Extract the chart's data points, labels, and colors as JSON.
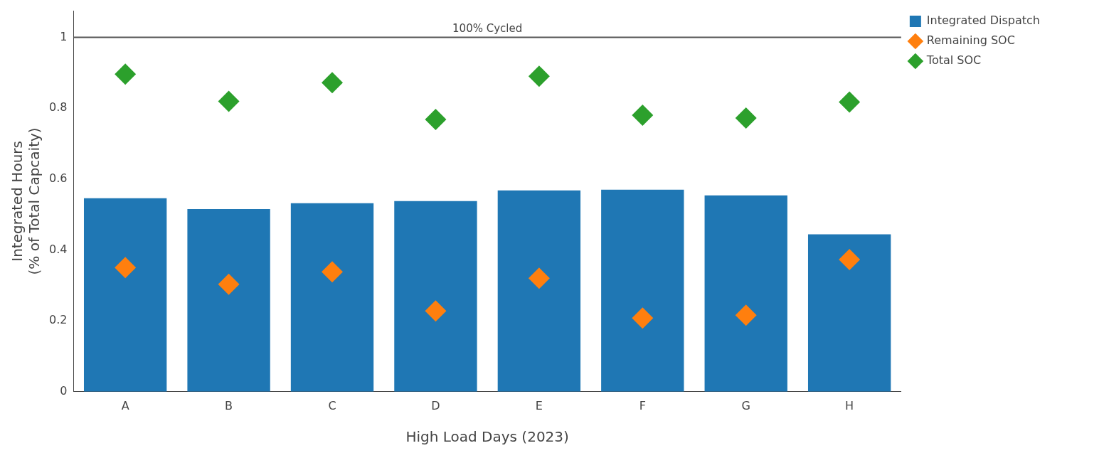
{
  "chart_data": {
    "type": "bar",
    "xlabel": "High Load Days (2023)",
    "ylabel": "Integrated Hours\n(% of Total Capcaity)",
    "categories": [
      "A",
      "B",
      "C",
      "D",
      "E",
      "F",
      "G",
      "H"
    ],
    "series": [
      {
        "name": "Integrated Dispatch",
        "color": "#1f77b4",
        "values": [
          0.546,
          0.515,
          0.532,
          0.538,
          0.568,
          0.57,
          0.554,
          0.444
        ]
      },
      {
        "name": "Remaining SOC",
        "type": "scatter",
        "color": "#ff7f0e",
        "x": [
          "A",
          "B",
          "C",
          "D",
          "E",
          "F",
          "G",
          "H"
        ],
        "values": [
          0.35,
          0.303,
          0.338,
          0.228,
          0.32,
          0.208,
          0.216,
          0.373
        ]
      },
      {
        "name": "Total SOC",
        "type": "scatter",
        "color": "#2ca02c",
        "x": [
          "A",
          "B",
          "C",
          "D",
          "E",
          "F",
          "G",
          "H"
        ],
        "values": [
          0.896,
          0.819,
          0.872,
          0.768,
          0.89,
          0.78,
          0.772,
          0.817
        ]
      }
    ],
    "ylim": [
      0,
      1.075
    ],
    "yticks": [
      0,
      0.2,
      0.4,
      0.6,
      0.8,
      1
    ],
    "ref_lines": [
      {
        "axis": "y",
        "value": 1,
        "label": "100% Cycled",
        "color": "#555555"
      }
    ],
    "marker": "diamond",
    "legend": "top right"
  }
}
